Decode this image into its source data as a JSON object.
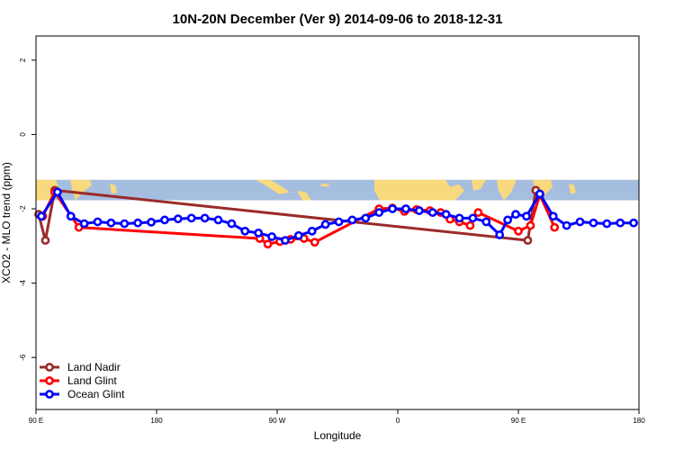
{
  "chart_data": {
    "type": "line",
    "title": "10N-20N December (Ver 9)   2014-09-06 to 2018-12-31",
    "xlabel": "Longitude",
    "ylabel": "XCO2 - MLO trend (ppm)",
    "x_ticks": [
      {
        "value": 90,
        "label": "90 E"
      },
      {
        "value": 180,
        "label": "180"
      },
      {
        "value": 270,
        "label": "90 W"
      },
      {
        "value": 360,
        "label": "0"
      },
      {
        "value": 450,
        "label": "90 E"
      },
      {
        "value": 540,
        "label": "180"
      }
    ],
    "y_ticks": [
      {
        "value": 2,
        "label": "2"
      },
      {
        "value": 0,
        "label": "0"
      },
      {
        "value": -2,
        "label": "-2"
      },
      {
        "value": -4,
        "label": "-4"
      },
      {
        "value": -6,
        "label": "-6"
      }
    ],
    "xlim": [
      90,
      540
    ],
    "ylim": [
      -7.4,
      2.65
    ],
    "map_strip": {
      "y_top": -1.22,
      "y_bottom": -1.77,
      "ocean_color": "#a5bedf",
      "land_color": "#f9d97d"
    },
    "series": [
      {
        "name": "Land Nadir",
        "color": "#9b2a2a",
        "x": [
          92,
          97,
          104,
          457,
          463,
          466
        ],
        "y": [
          -2.15,
          -2.85,
          -1.5,
          -2.85,
          -1.5,
          -1.62
        ]
      },
      {
        "name": "Land Glint",
        "color": "#ff0000",
        "x": [
          95,
          104,
          122,
          257,
          263,
          272,
          280,
          290,
          298,
          346,
          356,
          365,
          374,
          384,
          392,
          399,
          406,
          414,
          420,
          450,
          459,
          466,
          477
        ],
        "y": [
          -2.2,
          -1.55,
          -2.5,
          -2.8,
          -2.95,
          -2.88,
          -2.82,
          -2.8,
          -2.9,
          -2.0,
          -1.98,
          -2.07,
          -2.02,
          -2.05,
          -2.1,
          -2.28,
          -2.35,
          -2.45,
          -2.1,
          -2.6,
          -2.45,
          -1.62,
          -2.5
        ]
      },
      {
        "name": "Ocean Glint",
        "color": "#0000ff",
        "x": [
          94,
          106,
          116,
          126,
          136,
          146,
          156,
          166,
          176,
          186,
          196,
          206,
          216,
          226,
          236,
          246,
          256,
          266,
          276,
          286,
          296,
          306,
          316,
          326,
          336,
          346,
          356,
          366,
          376,
          386,
          396,
          406,
          416,
          426,
          436,
          442,
          448,
          456,
          466,
          476,
          486,
          496,
          506,
          516,
          526,
          536
        ],
        "y": [
          -2.2,
          -1.55,
          -2.2,
          -2.4,
          -2.35,
          -2.38,
          -2.4,
          -2.38,
          -2.36,
          -2.3,
          -2.27,
          -2.25,
          -2.25,
          -2.3,
          -2.4,
          -2.6,
          -2.65,
          -2.75,
          -2.85,
          -2.72,
          -2.6,
          -2.42,
          -2.35,
          -2.3,
          -2.25,
          -2.1,
          -2.0,
          -2.0,
          -2.05,
          -2.1,
          -2.15,
          -2.25,
          -2.25,
          -2.35,
          -2.7,
          -2.3,
          -2.15,
          -2.2,
          -1.6,
          -2.2,
          -2.45,
          -2.35,
          -2.38,
          -2.4,
          -2.38,
          -2.38
        ]
      }
    ],
    "legend": {
      "position": "bottom-left"
    }
  }
}
